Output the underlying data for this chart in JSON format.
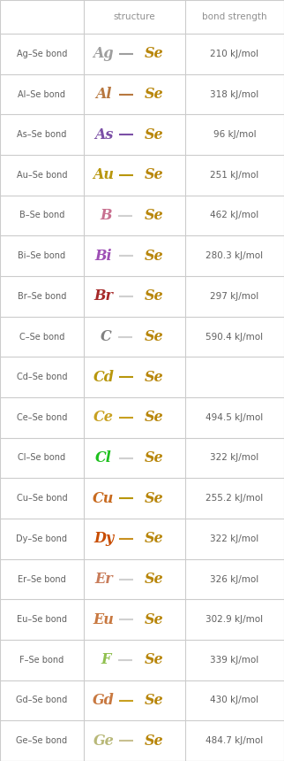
{
  "header": [
    "",
    "structure",
    "bond strength"
  ],
  "rows": [
    {
      "label": "Ag–Se bond",
      "elem1": "Ag",
      "elem2": "Se",
      "color1": "#9e9e9e",
      "color2": "#b8860b",
      "bond_color": "#9e9e9e",
      "strength": "210 kJ/mol"
    },
    {
      "label": "Al–Se bond",
      "elem1": "Al",
      "elem2": "Se",
      "color1": "#b87840",
      "color2": "#b8860b",
      "bond_color": "#b87840",
      "strength": "318 kJ/mol"
    },
    {
      "label": "As–Se bond",
      "elem1": "As",
      "elem2": "Se",
      "color1": "#7b4fa6",
      "color2": "#b8860b",
      "bond_color": "#7b4fa6",
      "strength": "96 kJ/mol"
    },
    {
      "label": "Au–Se bond",
      "elem1": "Au",
      "elem2": "Se",
      "color1": "#b8960c",
      "color2": "#b8860b",
      "bond_color": "#b8960c",
      "strength": "251 kJ/mol"
    },
    {
      "label": "B–Se bond",
      "elem1": "B",
      "elem2": "Se",
      "color1": "#c87090",
      "color2": "#b8860b",
      "bond_color": "#d0d0d0",
      "strength": "462 kJ/mol"
    },
    {
      "label": "Bi–Se bond",
      "elem1": "Bi",
      "elem2": "Se",
      "color1": "#9e4fb5",
      "color2": "#b8860b",
      "bond_color": "#d0d0d0",
      "strength": "280.3 kJ/mol"
    },
    {
      "label": "Br–Se bond",
      "elem1": "Br",
      "elem2": "Se",
      "color1": "#a62929",
      "color2": "#b8860b",
      "bond_color": "#d0d0d0",
      "strength": "297 kJ/mol"
    },
    {
      "label": "C–Se bond",
      "elem1": "C",
      "elem2": "Se",
      "color1": "#808080",
      "color2": "#b8860b",
      "bond_color": "#d0d0d0",
      "strength": "590.4 kJ/mol"
    },
    {
      "label": "Cd–Se bond",
      "elem1": "Cd",
      "elem2": "Se",
      "color1": "#b8960c",
      "color2": "#b8860b",
      "bond_color": "#b8960c",
      "strength": ""
    },
    {
      "label": "Ce–Se bond",
      "elem1": "Ce",
      "elem2": "Se",
      "color1": "#c8a020",
      "color2": "#b8860b",
      "bond_color": "#c8a020",
      "strength": "494.5 kJ/mol"
    },
    {
      "label": "Cl–Se bond",
      "elem1": "Cl",
      "elem2": "Se",
      "color1": "#1dc01d",
      "color2": "#b8860b",
      "bond_color": "#d0d0d0",
      "strength": "322 kJ/mol"
    },
    {
      "label": "Cu–Se bond",
      "elem1": "Cu",
      "elem2": "Se",
      "color1": "#c86a1e",
      "color2": "#b8860b",
      "bond_color": "#b8960c",
      "strength": "255.2 kJ/mol"
    },
    {
      "label": "Dy–Se bond",
      "elem1": "Dy",
      "elem2": "Se",
      "color1": "#c84c00",
      "color2": "#b8860b",
      "bond_color": "#c89020",
      "strength": "322 kJ/mol"
    },
    {
      "label": "Er–Se bond",
      "elem1": "Er",
      "elem2": "Se",
      "color1": "#c87c5a",
      "color2": "#b8860b",
      "bond_color": "#d0d0d0",
      "strength": "326 kJ/mol"
    },
    {
      "label": "Eu–Se bond",
      "elem1": "Eu",
      "elem2": "Se",
      "color1": "#c87840",
      "color2": "#b8860b",
      "bond_color": "#d0d0d0",
      "strength": "302.9 kJ/mol"
    },
    {
      "label": "F–Se bond",
      "elem1": "F",
      "elem2": "Se",
      "color1": "#90c050",
      "color2": "#b8860b",
      "bond_color": "#d0d0d0",
      "strength": "339 kJ/mol"
    },
    {
      "label": "Gd–Se bond",
      "elem1": "Gd",
      "elem2": "Se",
      "color1": "#c87840",
      "color2": "#b8860b",
      "bond_color": "#c8a020",
      "strength": "430 kJ/mol"
    },
    {
      "label": "Ge–Se bond",
      "elem1": "Ge",
      "elem2": "Se",
      "color1": "#b8b878",
      "color2": "#b8860b",
      "bond_color": "#c8c090",
      "strength": "484.7 kJ/mol"
    }
  ],
  "grid_color": "#cccccc",
  "text_color": "#606060",
  "header_text_color": "#909090",
  "label_fontsize": 7.0,
  "elem_fontsize": 11.5,
  "strength_fontsize": 7.5,
  "header_fontsize": 7.5
}
